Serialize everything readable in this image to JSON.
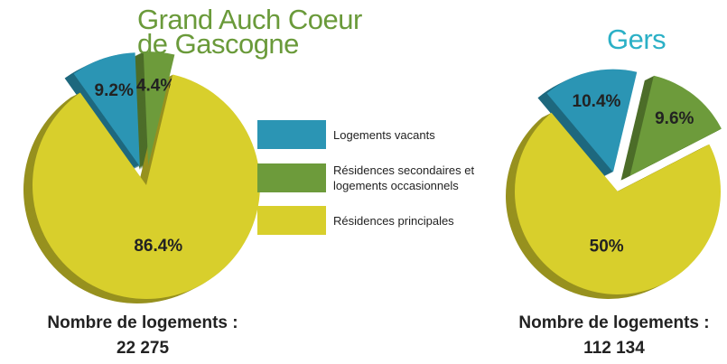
{
  "legend": [
    {
      "label": "Logements vacants",
      "color": "#2b95b4"
    },
    {
      "label": "Résidences secondaires et logements occasionnels",
      "color": "#6d9b3b"
    },
    {
      "label": "Résidences principales",
      "color": "#d8cf2c"
    }
  ],
  "chart_data": [
    {
      "type": "pie",
      "title": "Grand Auch Coeur de Gascogne",
      "title_color": "#6a9a3a",
      "values": [
        9.2,
        4.4,
        86.4
      ],
      "value_labels": [
        "9.2%",
        "4.4%",
        "86.4%"
      ],
      "footer": "Nombre de logements :",
      "total": "22 275"
    },
    {
      "type": "pie",
      "title": "Gers",
      "title_color": "#2bb0c6",
      "values": [
        10.4,
        9.6,
        50
      ],
      "value_labels": [
        "10.4%",
        "9.6%",
        "50%"
      ],
      "footer": "Nombre de logements :",
      "total": "112 134"
    }
  ]
}
